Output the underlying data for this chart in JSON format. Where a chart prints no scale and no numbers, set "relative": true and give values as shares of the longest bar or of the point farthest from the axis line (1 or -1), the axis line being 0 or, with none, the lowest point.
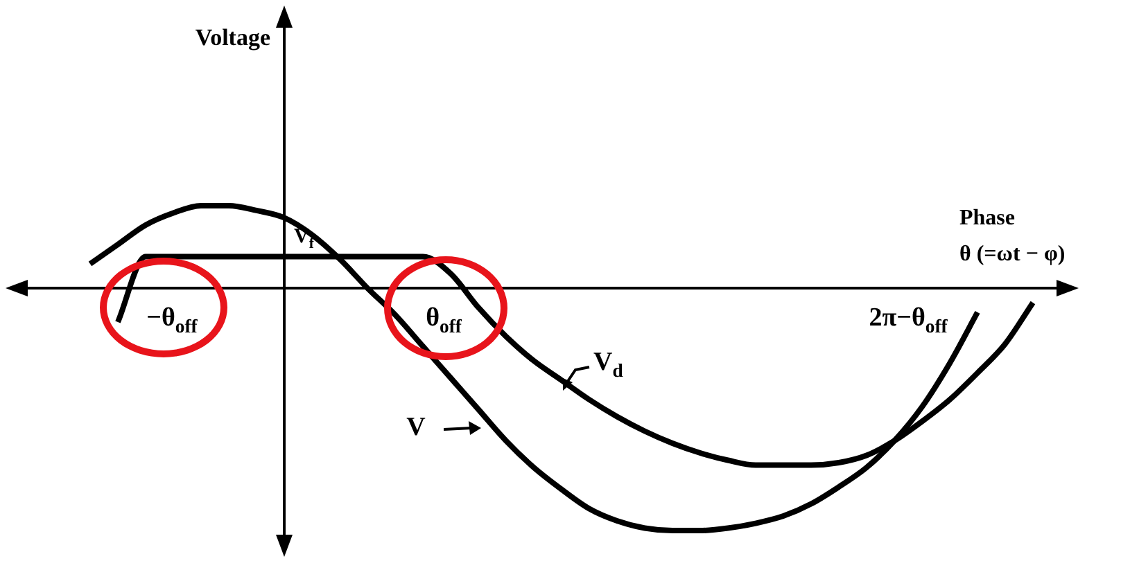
{
  "chart_data": {
    "type": "line",
    "relative": true,
    "xlabel": "Phase\nθ (=ωt − φ)",
    "categories": [
      null,
      null,
      null,
      null,
      null,
      null,
      null,
      null,
      null,
      null,
      null,
      null,
      null,
      null,
      null,
      null,
      null,
      null,
      null,
      null,
      null,
      null,
      null,
      null,
      null,
      null,
      null,
      null,
      null,
      null,
      null,
      null,
      null,
      null,
      null,
      null,
      null,
      null,
      null,
      null
    ],
    "series": [
      {
        "name": "V",
        "color": "#000000",
        "values": [
          null,
          null,
          0.1,
          0.18,
          0.26,
          0.31,
          0.34,
          0.34,
          0.32,
          0.29,
          0.22,
          0.12,
          0,
          -0.11,
          -0.24,
          -0.37,
          -0.5,
          -0.63,
          -0.74,
          -0.83,
          -0.91,
          -0.96,
          -0.99,
          -1,
          -1,
          -0.99,
          -0.97,
          -0.94,
          -0.89,
          -0.82,
          -0.74,
          -0.63,
          -0.49,
          -0.31,
          -0.1,
          null,
          null,
          null,
          null,
          null
        ]
      },
      {
        "name": "V$_{d}$",
        "color": "#000000",
        "values": [
          null,
          null,
          null,
          -0.14,
          0.13,
          0.13,
          0.13,
          0.13,
          0.13,
          0.13,
          0.13,
          0.13,
          0.13,
          0.13,
          0.13,
          0.06,
          -0.08,
          -0.2,
          -0.3,
          -0.38,
          -0.46,
          -0.53,
          -0.59,
          -0.64,
          -0.68,
          -0.71,
          -0.73,
          -0.73,
          -0.73,
          -0.72,
          -0.69,
          -0.63,
          -0.55,
          -0.46,
          -0.35,
          -0.23,
          -0.06,
          null,
          null,
          null
        ]
      }
    ],
    "annotations": [
      "Voltage",
      "V$_{f}$",
      "−θ$_{off}$",
      "θ$_{off}$",
      "2π−θ$_{off}$"
    ],
    "marker": "none",
    "line_style": "solid"
  }
}
